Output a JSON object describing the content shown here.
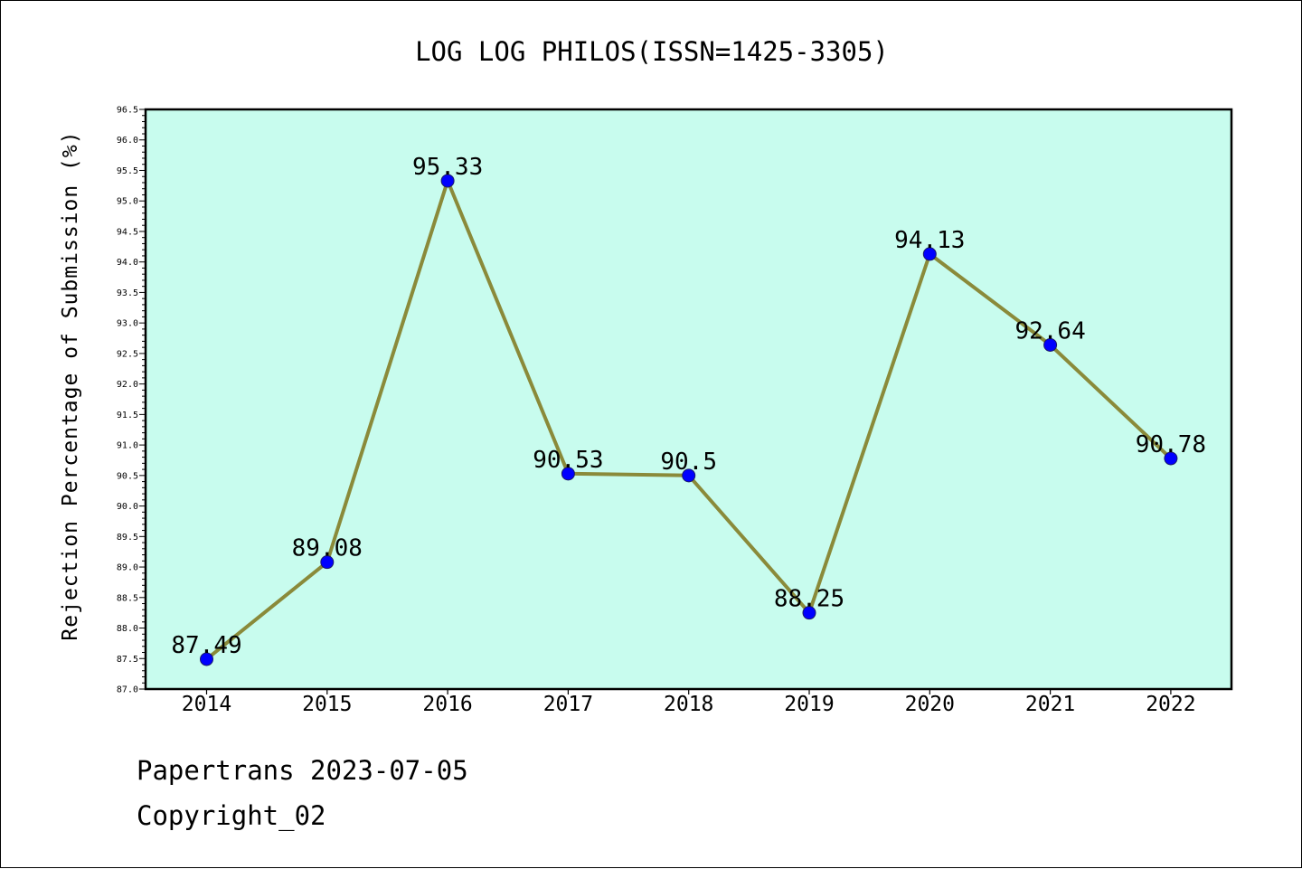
{
  "chart_data": {
    "type": "line",
    "title": "LOG LOG PHILOS(ISSN=1425-3305)",
    "xlabel": "",
    "ylabel": "Rejection Percentage of Submission (%)",
    "categories": [
      "2014",
      "2015",
      "2016",
      "2017",
      "2018",
      "2019",
      "2020",
      "2021",
      "2022"
    ],
    "series": [
      {
        "values": [
          87.49,
          89.08,
          95.33,
          90.53,
          90.5,
          88.25,
          94.13,
          92.64,
          90.78
        ],
        "data_labels": [
          "87.49",
          "89.08",
          "95.33",
          "90.53",
          "90.5",
          "88.25",
          "94.13",
          "92.64",
          "90.78"
        ]
      }
    ],
    "ylim": [
      87.0,
      96.5
    ],
    "yticks": [
      "87.0",
      "87.5",
      "88.0",
      "88.5",
      "89.0",
      "89.5",
      "90.0",
      "90.5",
      "91.0",
      "91.5",
      "92.0",
      "92.5",
      "93.0",
      "93.5",
      "94.0",
      "94.5",
      "95.0",
      "95.5",
      "96.0",
      "96.5"
    ],
    "grid": false,
    "colors": {
      "plot_background": "#c8fcee",
      "line": "#8a8a3a",
      "marker": "#0000ff"
    }
  },
  "footer": {
    "source": "Papertrans 2023-07-05",
    "copyright": "Copyright_02"
  }
}
